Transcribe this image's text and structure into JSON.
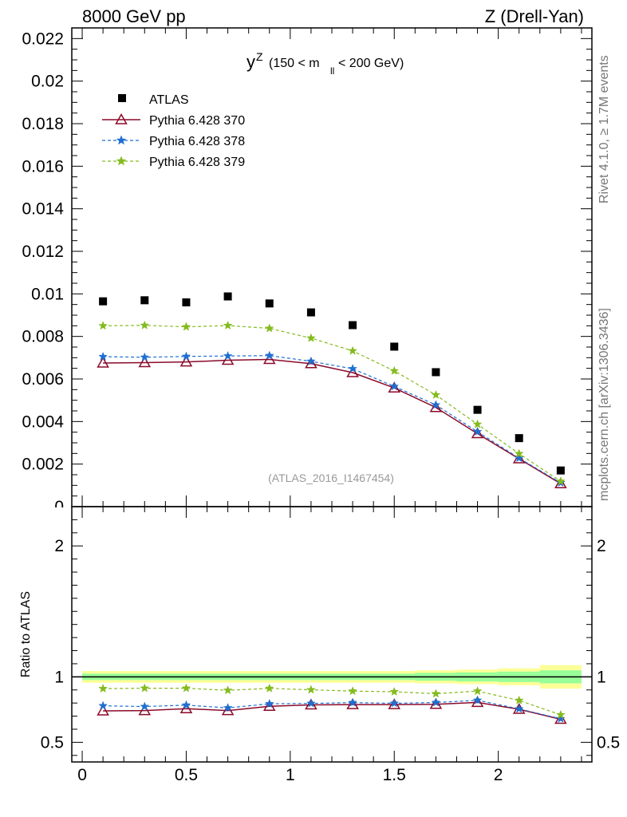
{
  "header": {
    "left": "8000 GeV pp",
    "right": "Z (Drell-Yan)"
  },
  "side_labels": {
    "rivet": "Rivet 4.1.0, ≥ 1.7M events",
    "url": "mcplots.cern.ch [arXiv:1306.3436]"
  },
  "chart_data": {
    "type": "scatter",
    "title": {
      "main": "y",
      "sup": "Z",
      "sub_open": "(150 < m",
      "sub_idx": "ll",
      "sub_close": " < 200 GeV)"
    },
    "watermark": "(ATLAS_2016_I1467454)",
    "x": [
      0.1,
      0.3,
      0.5,
      0.7,
      0.9,
      1.1,
      1.3,
      1.5,
      1.7,
      1.9,
      2.1,
      2.3
    ],
    "xlim": [
      -0.05,
      2.45
    ],
    "xticks": [
      0,
      0.5,
      1,
      1.5,
      2
    ],
    "xtick_labels": [
      "0",
      "0.5",
      "1",
      "1.5",
      "2"
    ],
    "main_panel": {
      "ylim": [
        0,
        0.0225
      ],
      "yticks": [
        0.002,
        0.004,
        0.006,
        0.008,
        0.01,
        0.012,
        0.014,
        0.016,
        0.018,
        0.02,
        0.022
      ],
      "ytick_labels": [
        "0.002",
        "0.004",
        "0.006",
        "0.008",
        "0.01",
        "0.012",
        "0.014",
        "0.016",
        "0.018",
        "0.02",
        "0.022"
      ],
      "zero_label": "0",
      "data": {
        "name": "ATLAS",
        "values": [
          0.00965,
          0.0097,
          0.0096,
          0.00988,
          0.00955,
          0.00913,
          0.00853,
          0.00752,
          0.00632,
          0.00455,
          0.00322,
          0.0017
        ]
      },
      "series": [
        {
          "name": "Pythia 6.428 370",
          "color": "#8b0a2a",
          "dash": "none",
          "marker": "triangle-open",
          "values": [
            0.00675,
            0.00677,
            0.0068,
            0.00688,
            0.00692,
            0.00672,
            0.0063,
            0.00558,
            0.00466,
            0.00343,
            0.00225,
            0.00108
          ]
        },
        {
          "name": "Pythia 6.428 378",
          "color": "#1f6fd1",
          "dash": "6,4",
          "marker": "star",
          "values": [
            0.00705,
            0.00702,
            0.00706,
            0.00708,
            0.0071,
            0.00683,
            0.00648,
            0.00565,
            0.00478,
            0.00352,
            0.00228,
            0.00112
          ]
        },
        {
          "name": "Pythia 6.428 379",
          "color": "#84bb1d",
          "dash": "6,4",
          "marker": "star",
          "values": [
            0.0085,
            0.00852,
            0.00845,
            0.00851,
            0.00838,
            0.00792,
            0.00732,
            0.00638,
            0.00525,
            0.00387,
            0.00249,
            0.00119
          ]
        }
      ]
    },
    "ratio_panel": {
      "ylabel": "Ratio to ATLAS",
      "ylim": [
        0.35,
        2.3
      ],
      "yticks": [
        0.5,
        1,
        2
      ],
      "ytick_labels": [
        "0.5",
        "1",
        "2"
      ],
      "band_yellow_half": [
        0.045,
        0.045,
        0.045,
        0.045,
        0.045,
        0.045,
        0.045,
        0.045,
        0.05,
        0.055,
        0.065,
        0.09
      ],
      "band_green_half": [
        0.025,
        0.025,
        0.025,
        0.025,
        0.025,
        0.025,
        0.025,
        0.025,
        0.03,
        0.035,
        0.04,
        0.05
      ],
      "series": [
        {
          "name": "Pythia 6.428 370",
          "values": [
            0.74,
            0.742,
            0.757,
            0.742,
            0.775,
            0.786,
            0.788,
            0.788,
            0.79,
            0.805,
            0.752,
            0.676
          ]
        },
        {
          "name": "Pythia 6.428 378",
          "values": [
            0.779,
            0.773,
            0.784,
            0.763,
            0.794,
            0.797,
            0.803,
            0.798,
            0.804,
            0.821,
            0.755,
            0.68
          ]
        },
        {
          "name": "Pythia 6.428 379",
          "values": [
            0.91,
            0.913,
            0.913,
            0.897,
            0.912,
            0.901,
            0.891,
            0.886,
            0.871,
            0.891,
            0.82,
            0.71
          ]
        }
      ]
    }
  }
}
